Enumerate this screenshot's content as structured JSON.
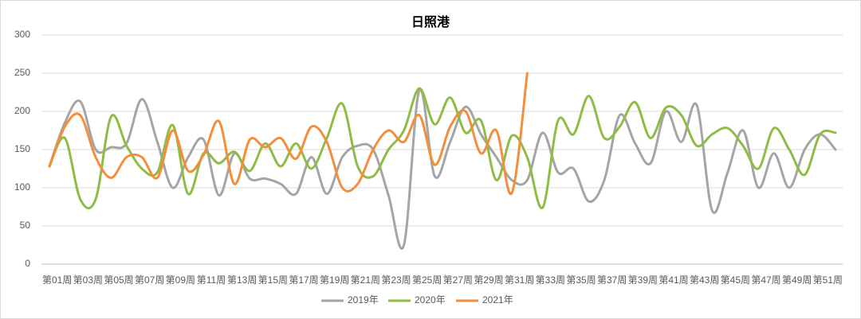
{
  "chart_data": {
    "type": "line",
    "title": "日照港",
    "categories": [
      "第01周",
      null,
      "第03周",
      null,
      "第05周",
      null,
      "第07周",
      null,
      "第09周",
      null,
      "第11周",
      null,
      "第13周",
      null,
      "第15周",
      null,
      "第17周",
      null,
      "第19周",
      null,
      "第21周",
      null,
      "第23周",
      null,
      "第25周",
      null,
      "第27周",
      null,
      "第29周",
      null,
      "第31周",
      null,
      "第33周",
      null,
      "第35周",
      null,
      "第37周",
      null,
      "第39周",
      null,
      "第41周",
      null,
      "第43周",
      null,
      "第45周",
      null,
      "第47周",
      null,
      "第49周",
      null,
      "第51周",
      null
    ],
    "series": [
      {
        "name": "2019年",
        "color": "#a5a5a5",
        "values": [
          128,
          185,
          213,
          150,
          153,
          158,
          216,
          160,
          100,
          140,
          163,
          90,
          145,
          112,
          112,
          105,
          92,
          140,
          92,
          140,
          155,
          150,
          90,
          25,
          228,
          115,
          160,
          206,
          170,
          140,
          110,
          110,
          172,
          120,
          125,
          82,
          110,
          195,
          158,
          132,
          200,
          160,
          208,
          70,
          120,
          175,
          100,
          145,
          100,
          150,
          170,
          150
        ]
      },
      {
        "name": "2020年",
        "color": "#8fbc45",
        "values": [
          128,
          165,
          85,
          85,
          193,
          155,
          125,
          120,
          182,
          92,
          145,
          132,
          147,
          122,
          158,
          128,
          158,
          125,
          165,
          210,
          128,
          115,
          150,
          175,
          230,
          183,
          218,
          172,
          188,
          110,
          168,
          140,
          74,
          188,
          170,
          220,
          165,
          180,
          212,
          165,
          205,
          195,
          155,
          170,
          178,
          155,
          125,
          178,
          150,
          117,
          170,
          172
        ]
      },
      {
        "name": "2021年",
        "color": "#f28e3c",
        "values": [
          128,
          180,
          195,
          140,
          113,
          140,
          140,
          113,
          175,
          122,
          143,
          187,
          105,
          163,
          153,
          165,
          138,
          180,
          160,
          100,
          105,
          150,
          175,
          160,
          195,
          130,
          180,
          200,
          145,
          175,
          93,
          250,
          null,
          null,
          null,
          null,
          null,
          null,
          null,
          null,
          null,
          null,
          null,
          null,
          null,
          null,
          null,
          null,
          null,
          null,
          null,
          null
        ]
      }
    ],
    "ylim": [
      0,
      300
    ],
    "yticks": [
      0,
      50,
      100,
      150,
      200,
      250,
      300
    ],
    "grid": true,
    "legend": "bottom"
  }
}
